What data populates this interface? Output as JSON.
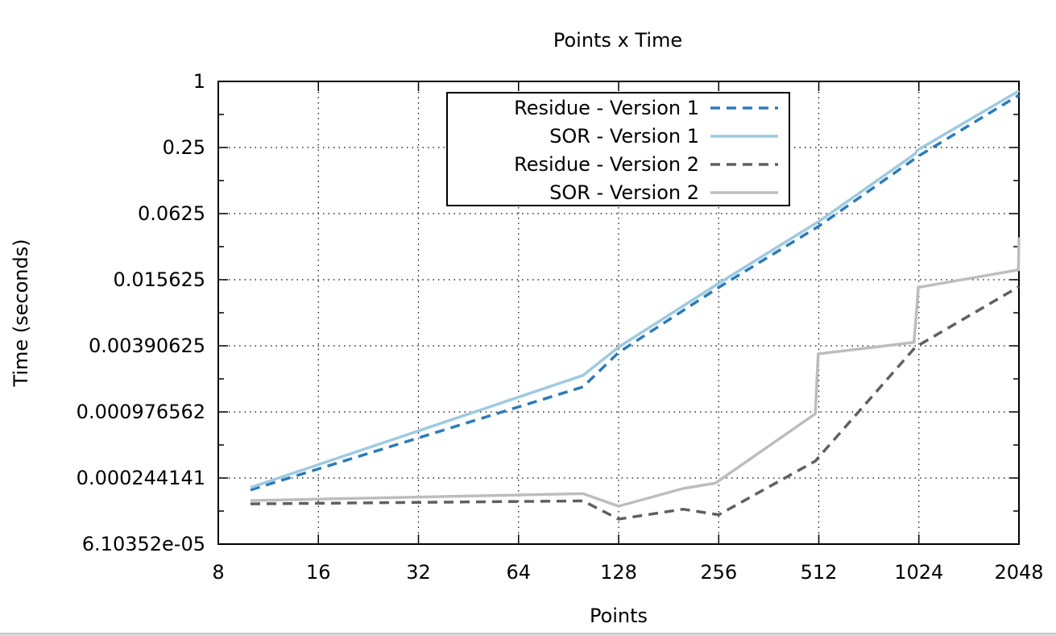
{
  "chart_data": {
    "type": "line",
    "title": "Points x Time",
    "xlabel": "Points",
    "ylabel": "Time (seconds)",
    "x_scale": "log2",
    "y_scale": "log2",
    "xlim": [
      8,
      2048
    ],
    "ylim": [
      6.10352e-05,
      1
    ],
    "x_ticks": [
      "8",
      "16",
      "32",
      "64",
      "128",
      "256",
      "512",
      "1024",
      "2048"
    ],
    "y_ticks": [
      "1",
      "0.25",
      "0.0625",
      "0.015625",
      "0.00390625",
      "0.000976562",
      "0.000244141",
      "6.10352e-05"
    ],
    "grid": true,
    "legend_position": "top-center",
    "series": [
      {
        "name": "Residue - Version 1",
        "color": "#2b7bba",
        "dash": "dashed",
        "points": [
          [
            10,
            0.00019
          ],
          [
            100,
            0.00165
          ],
          [
            128,
            0.0034
          ],
          [
            256,
            0.0133
          ],
          [
            512,
            0.048
          ],
          [
            1024,
            0.21
          ],
          [
            2048,
            0.75
          ]
        ]
      },
      {
        "name": "SOR - Version 1",
        "color": "#9ecae1",
        "dash": "solid",
        "points": [
          [
            10,
            0.0002
          ],
          [
            100,
            0.0021
          ],
          [
            128,
            0.0038
          ],
          [
            256,
            0.0145
          ],
          [
            512,
            0.053
          ],
          [
            1000,
            0.22
          ],
          [
            1010,
            0.235
          ],
          [
            2048,
            0.82
          ]
        ]
      },
      {
        "name": "Residue - Version 2",
        "color": "#606060",
        "dash": "dashed",
        "points": [
          [
            10,
            0.000142
          ],
          [
            100,
            0.000151
          ],
          [
            128,
            0.000103
          ],
          [
            200,
            0.000127
          ],
          [
            256,
            0.000113
          ],
          [
            500,
            0.000348
          ],
          [
            1000,
            0.0038
          ],
          [
            2048,
            0.0135
          ]
        ]
      },
      {
        "name": "SOR - Version 2",
        "color": "#bdbdbd",
        "dash": "solid",
        "points": [
          [
            10,
            0.000152
          ],
          [
            100,
            0.000176
          ],
          [
            128,
            0.000135
          ],
          [
            200,
            0.000196
          ],
          [
            250,
            0.000219
          ],
          [
            500,
            0.00094
          ],
          [
            505,
            0.0018
          ],
          [
            510,
            0.0033
          ],
          [
            990,
            0.0042
          ],
          [
            1010,
            0.0088
          ],
          [
            1020,
            0.0133
          ],
          [
            2040,
            0.0192
          ],
          [
            2048,
            0.038
          ]
        ]
      }
    ]
  }
}
